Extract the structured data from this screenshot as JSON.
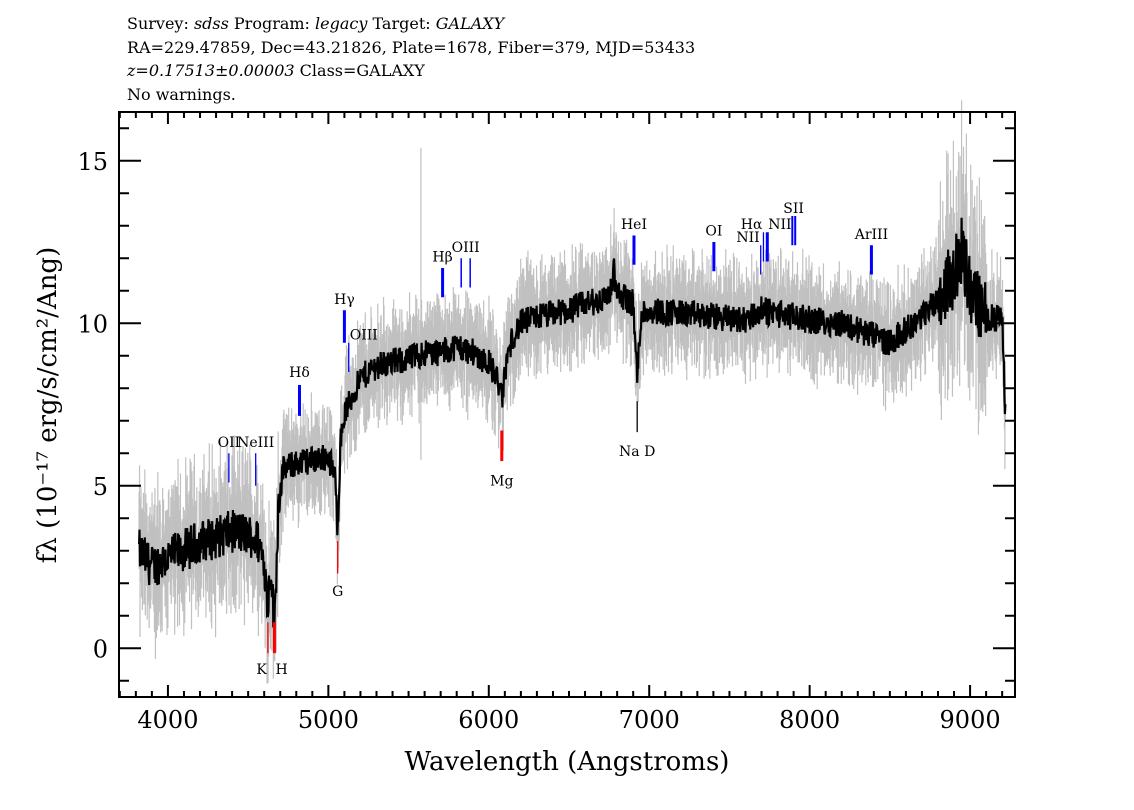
{
  "header": {
    "line1": {
      "survey_label": "Survey: ",
      "survey": "sdss",
      "program_label": " Program: ",
      "program": "legacy",
      "target_label": " Target: ",
      "target": "GALAXY"
    },
    "line2": "RA=229.47859, Dec=43.21826, Plate=1678, Fiber=379, MJD=53433",
    "line3": {
      "redshift": "z=0.17513±0.00003",
      "class": " Class=GALAXY"
    },
    "line4": "No warnings."
  },
  "chart_data": {
    "type": "line",
    "xlabel": "Wavelength (Angstroms)",
    "ylabel": "fλ (10⁻¹⁷ erg/s/cm²/Ang)",
    "xlim": [
      3695,
      9280
    ],
    "ylim": [
      -1.5,
      16.5
    ],
    "xticks": [
      4000,
      5000,
      6000,
      7000,
      8000,
      9000
    ],
    "yticks": [
      0,
      5,
      10,
      15
    ],
    "grid": false,
    "colors": {
      "flux": "#000000",
      "error_band": "#c0c0c0",
      "emission": "#0000ff",
      "absorption": "#ff0000"
    },
    "series": [
      {
        "wavelength": [
          3820,
          3900,
          4000,
          4100,
          4200,
          4300,
          4400,
          4500,
          4560,
          4600,
          4623,
          4640,
          4664,
          4690,
          4720,
          4800,
          4900,
          5000,
          5040,
          5058,
          5075,
          5100,
          5200,
          5300,
          5400,
          5500,
          5600,
          5700,
          5800,
          5900,
          6000,
          6060,
          6081,
          6110,
          6150,
          6200,
          6300,
          6400,
          6500,
          6600,
          6700,
          6770,
          6780,
          6795,
          6850,
          6900,
          6925,
          6950,
          7000,
          7200,
          7400,
          7600,
          7700,
          7800,
          8000,
          8200,
          8400,
          8500,
          8600,
          8700,
          8800,
          8900,
          8950,
          9000,
          9100,
          9200,
          9220
        ],
        "flux": [
          3.0,
          2.5,
          2.8,
          3.0,
          3.3,
          3.4,
          3.6,
          3.5,
          3.3,
          2.7,
          1.2,
          2.6,
          0.7,
          4.6,
          5.5,
          5.7,
          5.8,
          5.9,
          5.3,
          3.7,
          6.3,
          7.2,
          8.3,
          8.7,
          8.8,
          8.9,
          9.1,
          9.1,
          9.3,
          9.1,
          8.8,
          8.2,
          7.6,
          8.8,
          9.6,
          10.0,
          10.2,
          10.3,
          10.4,
          10.6,
          10.7,
          11.0,
          11.8,
          10.9,
          10.8,
          10.6,
          8.3,
          10.3,
          10.4,
          10.3,
          10.2,
          10.1,
          10.4,
          10.3,
          10.1,
          10.0,
          9.6,
          9.4,
          9.8,
          10.2,
          10.8,
          11.5,
          12.3,
          11.0,
          10.2,
          10.1,
          7.2
        ]
      }
    ],
    "lines": [
      {
        "label": "OII",
        "wavelength": 4380,
        "type": "emission"
      },
      {
        "label": "NeIII",
        "wavelength": 4547,
        "type": "emission"
      },
      {
        "label": "K",
        "wavelength": 4623,
        "type": "absorption"
      },
      {
        "label": "H",
        "wavelength": 4664,
        "type": "absorption"
      },
      {
        "label": "Hδ",
        "wavelength": 4820,
        "type": "emission"
      },
      {
        "label": "G",
        "wavelength": 5058,
        "type": "absorption"
      },
      {
        "label": "Hγ",
        "wavelength": 5100,
        "type": "emission"
      },
      {
        "label": "OIII",
        "wavelength": 5127,
        "type": "emission"
      },
      {
        "label": "Hβ",
        "wavelength": 5712,
        "type": "emission"
      },
      {
        "label": "OIII",
        "wavelength": 5856,
        "type": "emission"
      },
      {
        "label": "Mg",
        "wavelength": 6081,
        "type": "absorption"
      },
      {
        "label": "HeI",
        "wavelength": 6905,
        "type": "emission"
      },
      {
        "label": "Na  D",
        "wavelength": 6925,
        "type": "absorption"
      },
      {
        "label": "OI",
        "wavelength": 7403,
        "type": "emission"
      },
      {
        "label": "NII",
        "wavelength": 7695,
        "type": "emission"
      },
      {
        "label": "Hα",
        "wavelength": 7712,
        "type": "emission"
      },
      {
        "label": "NII",
        "wavelength": 7736,
        "type": "emission"
      },
      {
        "label": "SII",
        "wavelength": 7900,
        "type": "emission"
      },
      {
        "label": "ArIII",
        "wavelength": 8385,
        "type": "emission"
      }
    ]
  }
}
